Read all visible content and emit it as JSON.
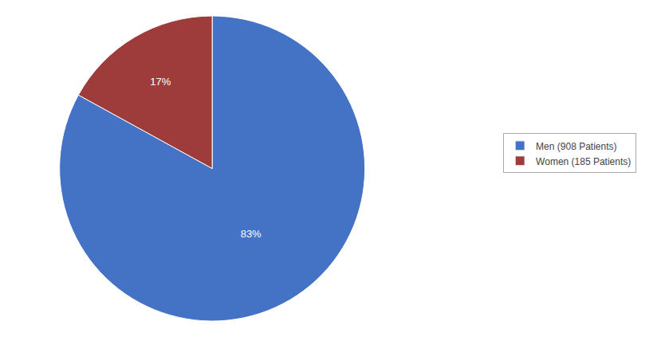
{
  "chart_data": {
    "type": "pie",
    "categories": [
      "Men (908 Patients)",
      "Women (185 Patients)"
    ],
    "values": [
      83,
      17
    ],
    "value_labels": [
      "83%",
      "17%"
    ],
    "colors": [
      "#4472C4",
      "#9E3B3B"
    ],
    "data_labels": true,
    "legend": "right"
  }
}
